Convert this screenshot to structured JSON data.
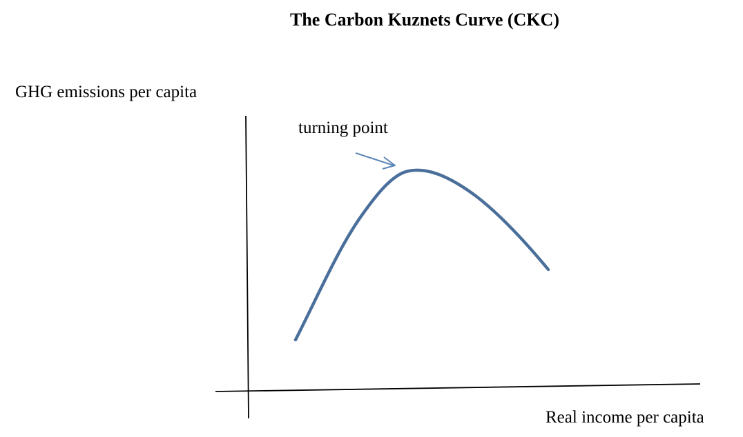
{
  "title": "The Carbon Kuznets Curve (CKC)",
  "y_axis_label": "GHG emissions per capita",
  "x_axis_label": "Real income per capita",
  "annotation": "turning point",
  "colors": {
    "curve": "#4a6f9a",
    "axes": "#000000",
    "arrow": "#5b86b8"
  }
}
